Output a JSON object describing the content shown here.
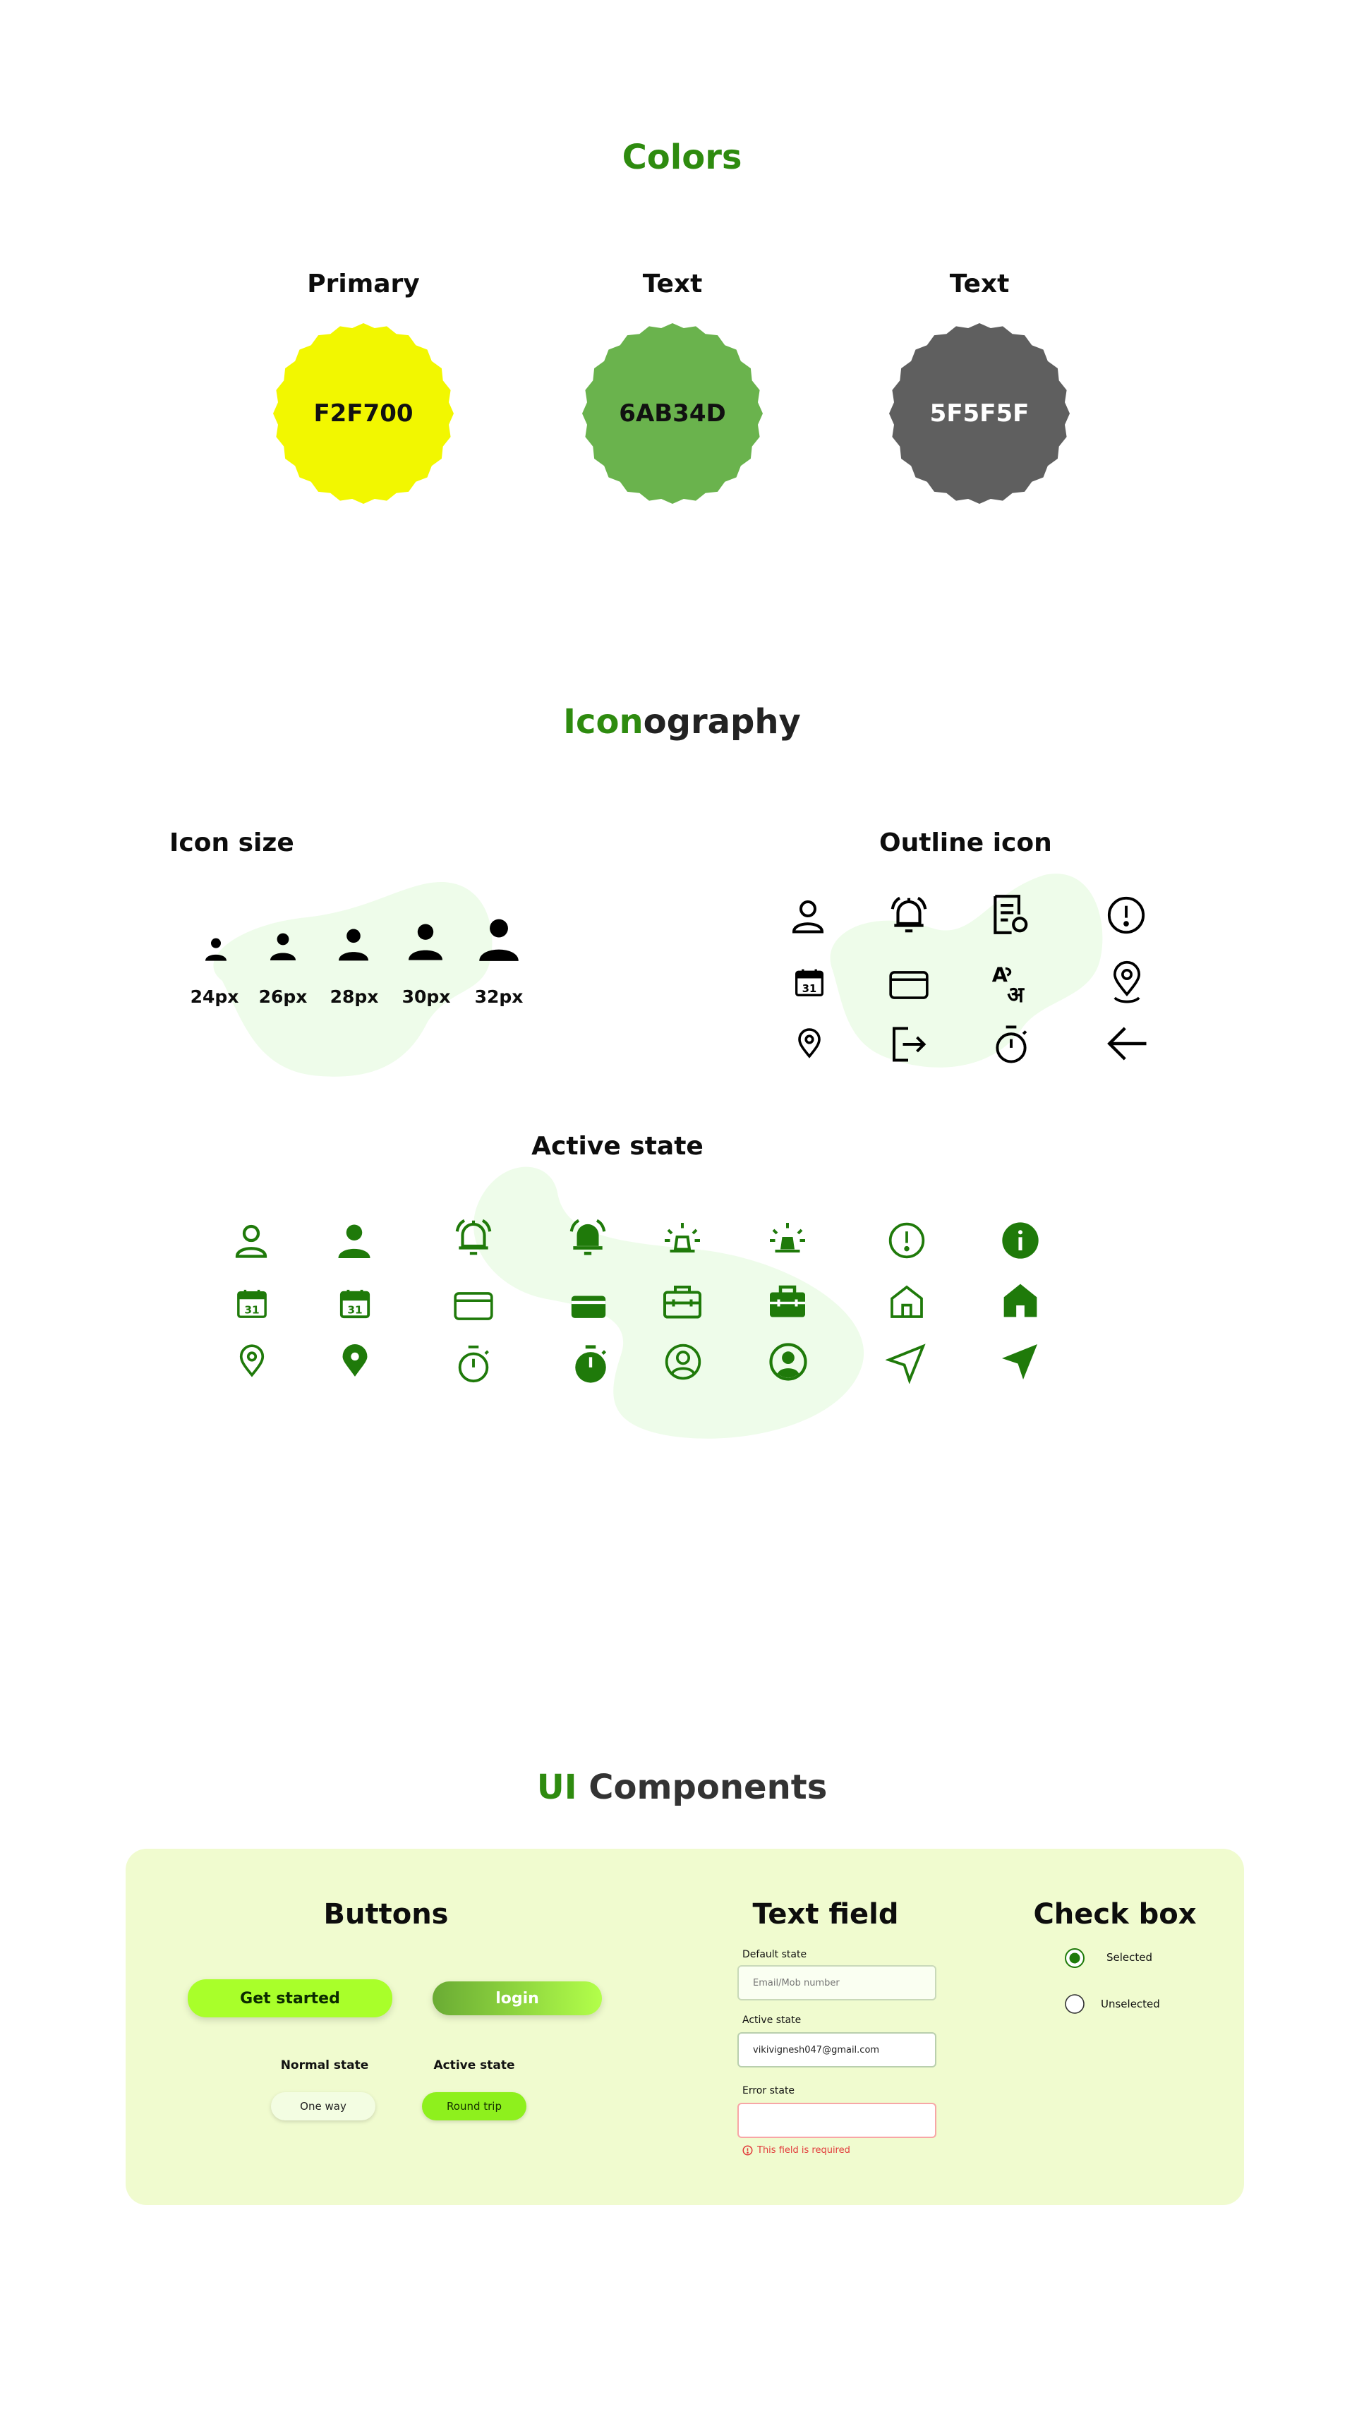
{
  "colors": {
    "title": "Colors",
    "swatches": [
      {
        "label": "Primary",
        "hex_text": "F2F700",
        "fill": "#F2F700",
        "text_color": "#111111"
      },
      {
        "label": "Text",
        "hex_text": "6AB34D",
        "fill": "#6AB34D",
        "text_color": "#111111"
      },
      {
        "label": "Text",
        "hex_text": "5F5F5F",
        "fill": "#5F5F5F",
        "text_color": "#ffffff"
      }
    ]
  },
  "iconography": {
    "title_accent": "Icon",
    "title_rest": "ography",
    "icon_size": {
      "title": "Icon size",
      "sizes": [
        "24px",
        "26px",
        "28px",
        "30px",
        "32px"
      ],
      "icon": "person-icon"
    },
    "outline": {
      "title": "Outline icon",
      "icons": [
        "person-outline-icon",
        "bell-ring-icon",
        "document-icon",
        "alert-circle-icon",
        "calendar-icon",
        "credit-card-icon",
        "translate-icon",
        "location-pin-icon",
        "location-pin-small-icon",
        "logout-icon",
        "stopwatch-icon",
        "arrow-left-icon"
      ]
    },
    "active_state": {
      "title": "Active state",
      "icon_color": "#1f7a0a"
    }
  },
  "ui_components": {
    "title_accent": "UI",
    "title_rest": "Components",
    "buttons": {
      "title": "Buttons",
      "get_started": "Get started",
      "login": "login",
      "normal_state_label": "Normal state",
      "active_state_label": "Active state",
      "chip_normal": "One way",
      "chip_active": "Round trip"
    },
    "text_field": {
      "title": "Text field",
      "default_label": "Default state",
      "default_placeholder": "Email/Mob number",
      "active_label": "Active state",
      "active_value": "vikivignesh047@gmail.com",
      "error_label": "Error state",
      "error_message": "This field is required"
    },
    "check_box": {
      "title": "Check box",
      "selected": "Selected",
      "unselected": "Unselected"
    }
  }
}
